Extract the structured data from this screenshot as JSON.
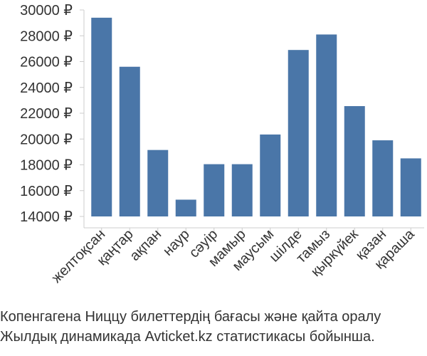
{
  "chart_data": {
    "type": "bar",
    "categories": [
      "желтоқсан",
      "қаңтар",
      "ақпан",
      "наур",
      "сәуір",
      "мамыр",
      "маусым",
      "шілде",
      "тамыз",
      "қыркүйек",
      "қазан",
      "қараша"
    ],
    "values": [
      29400,
      25600,
      19150,
      15300,
      18050,
      18050,
      20350,
      26900,
      28100,
      22550,
      19900,
      18500
    ],
    "ylim": [
      14000,
      30000
    ],
    "yticks": [
      14000,
      16000,
      18000,
      20000,
      22000,
      24000,
      26000,
      28000,
      30000
    ],
    "ytick_labels": [
      "14000 ₽",
      "16000 ₽",
      "18000 ₽",
      "20000 ₽",
      "22000 ₽",
      "24000 ₽",
      "26000 ₽",
      "28000 ₽",
      "30000 ₽"
    ],
    "bar_color": "#4a76a8",
    "grid": false
  },
  "caption": {
    "line1": "Копенгагена Ниццу билеттердің бағасы және қайта оралу",
    "line2": "Жылдық динамикада Avticket.kz статистикасы бойынша."
  }
}
